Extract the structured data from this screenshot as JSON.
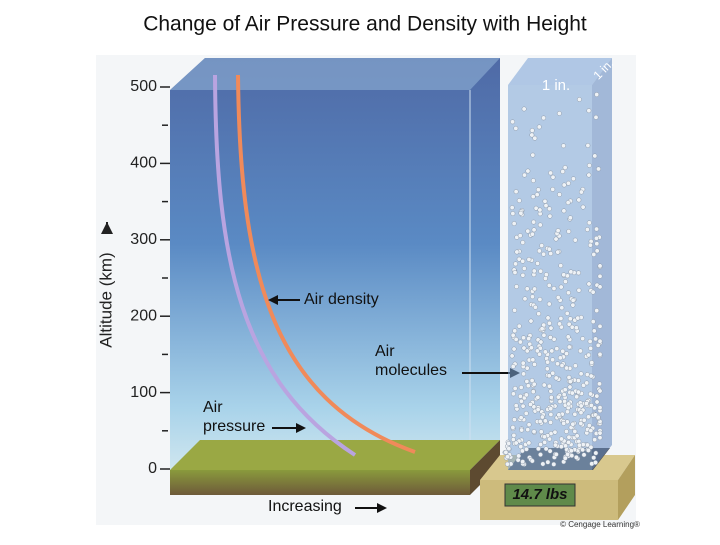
{
  "title": "Change of Air Pressure and Density with Height",
  "axis": {
    "label": "Altitude (km)",
    "ticks": [
      0,
      100,
      200,
      300,
      400,
      500
    ]
  },
  "labels": {
    "air_density": "Air density",
    "air_molecules": [
      "Air",
      "molecules"
    ],
    "air_pressure": [
      "Air",
      "pressure"
    ],
    "increasing": "Increasing"
  },
  "column": {
    "front_label": "1 in.",
    "side_label": "1 in."
  },
  "scale": {
    "reading": "14.7 lbs"
  },
  "credit": "© Cengage Learning®"
}
